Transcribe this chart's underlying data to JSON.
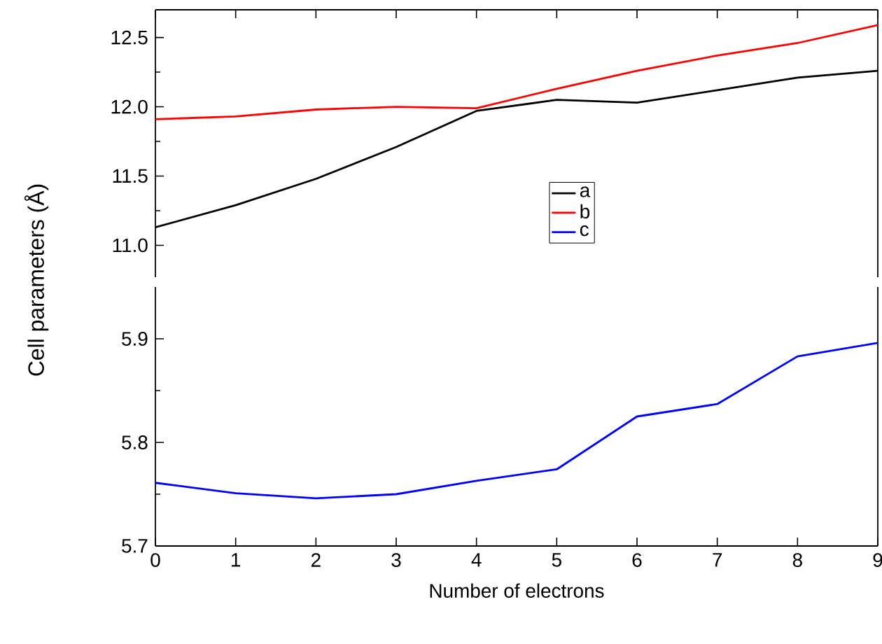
{
  "chart_data": [
    {
      "type": "line",
      "ylabel": "Cell parameters (Å)",
      "x": [
        0,
        1,
        2,
        3,
        4,
        5,
        6,
        7,
        8,
        9
      ],
      "xlim": [
        0,
        9
      ],
      "xticks": [
        0,
        1,
        2,
        3,
        4,
        5,
        6,
        7,
        8,
        9
      ],
      "ylim": [
        10.77,
        12.7
      ],
      "yticks": [
        {
          "value": 11,
          "label": "11.0"
        },
        11.5,
        {
          "value": 12,
          "label": "12.0"
        },
        12.5
      ],
      "tick_labels": "y",
      "legend": "bottom",
      "marker": "none",
      "line_style": "solid",
      "series": [
        {
          "name": "a",
          "color": "#000000",
          "values": [
            11.13,
            11.29,
            11.48,
            11.71,
            11.97,
            12.05,
            12.03,
            12.12,
            12.21,
            12.26
          ]
        },
        {
          "name": "b",
          "color": "#ff0000",
          "values": [
            11.91,
            11.93,
            11.98,
            12.0,
            11.99,
            12.13,
            12.26,
            12.37,
            12.46,
            12.59
          ]
        }
      ]
    },
    {
      "type": "line",
      "xlabel": "Number of electrons",
      "x": [
        0,
        1,
        2,
        3,
        4,
        5,
        6,
        7,
        8,
        9
      ],
      "xlim": [
        0,
        9
      ],
      "xticks": [
        0,
        1,
        2,
        3,
        4,
        5,
        6,
        7,
        8,
        9
      ],
      "ylim": [
        5.7,
        5.95
      ],
      "yticks": [
        5.7,
        5.8,
        5.9
      ],
      "marker": "none",
      "line_style": "solid",
      "series": [
        {
          "name": "c",
          "color": "#0000ff",
          "values": [
            5.761,
            5.751,
            5.746,
            5.75,
            5.763,
            5.774,
            5.825,
            5.837,
            5.883,
            5.896
          ]
        }
      ]
    }
  ]
}
